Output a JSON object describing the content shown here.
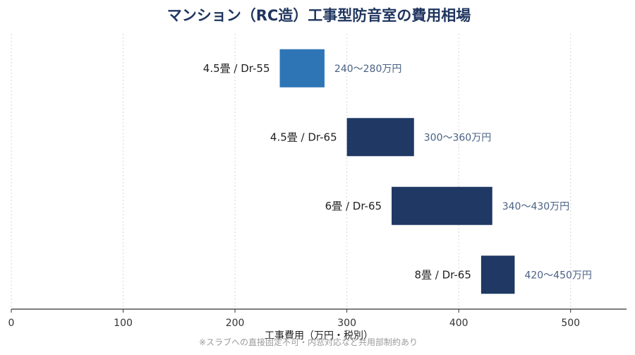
{
  "chart_data": {
    "type": "bar",
    "orientation": "horizontal-range",
    "title": "マンション（RC造）工事型防音室の費用相場",
    "xlabel": "工事費用（万円・税別）",
    "note": "※スラブへの直接固定不可・内窓対応など共用部制約あり",
    "xlim": [
      0,
      550
    ],
    "xticks": [
      0,
      100,
      200,
      300,
      400,
      500
    ],
    "grid": "vertical-dotted",
    "categories": [
      "4.5畳 / Dr-55",
      "4.5畳 / Dr-65",
      "6畳 / Dr-65",
      "8畳 / Dr-65"
    ],
    "ranges": [
      [
        240,
        280
      ],
      [
        300,
        360
      ],
      [
        340,
        430
      ],
      [
        420,
        450
      ]
    ],
    "value_labels": [
      "240〜280万円",
      "300〜360万円",
      "340〜430万円",
      "420〜450万円"
    ],
    "colors": [
      "#2e75b6",
      "#1f3864",
      "#1f3864",
      "#1f3864"
    ]
  }
}
